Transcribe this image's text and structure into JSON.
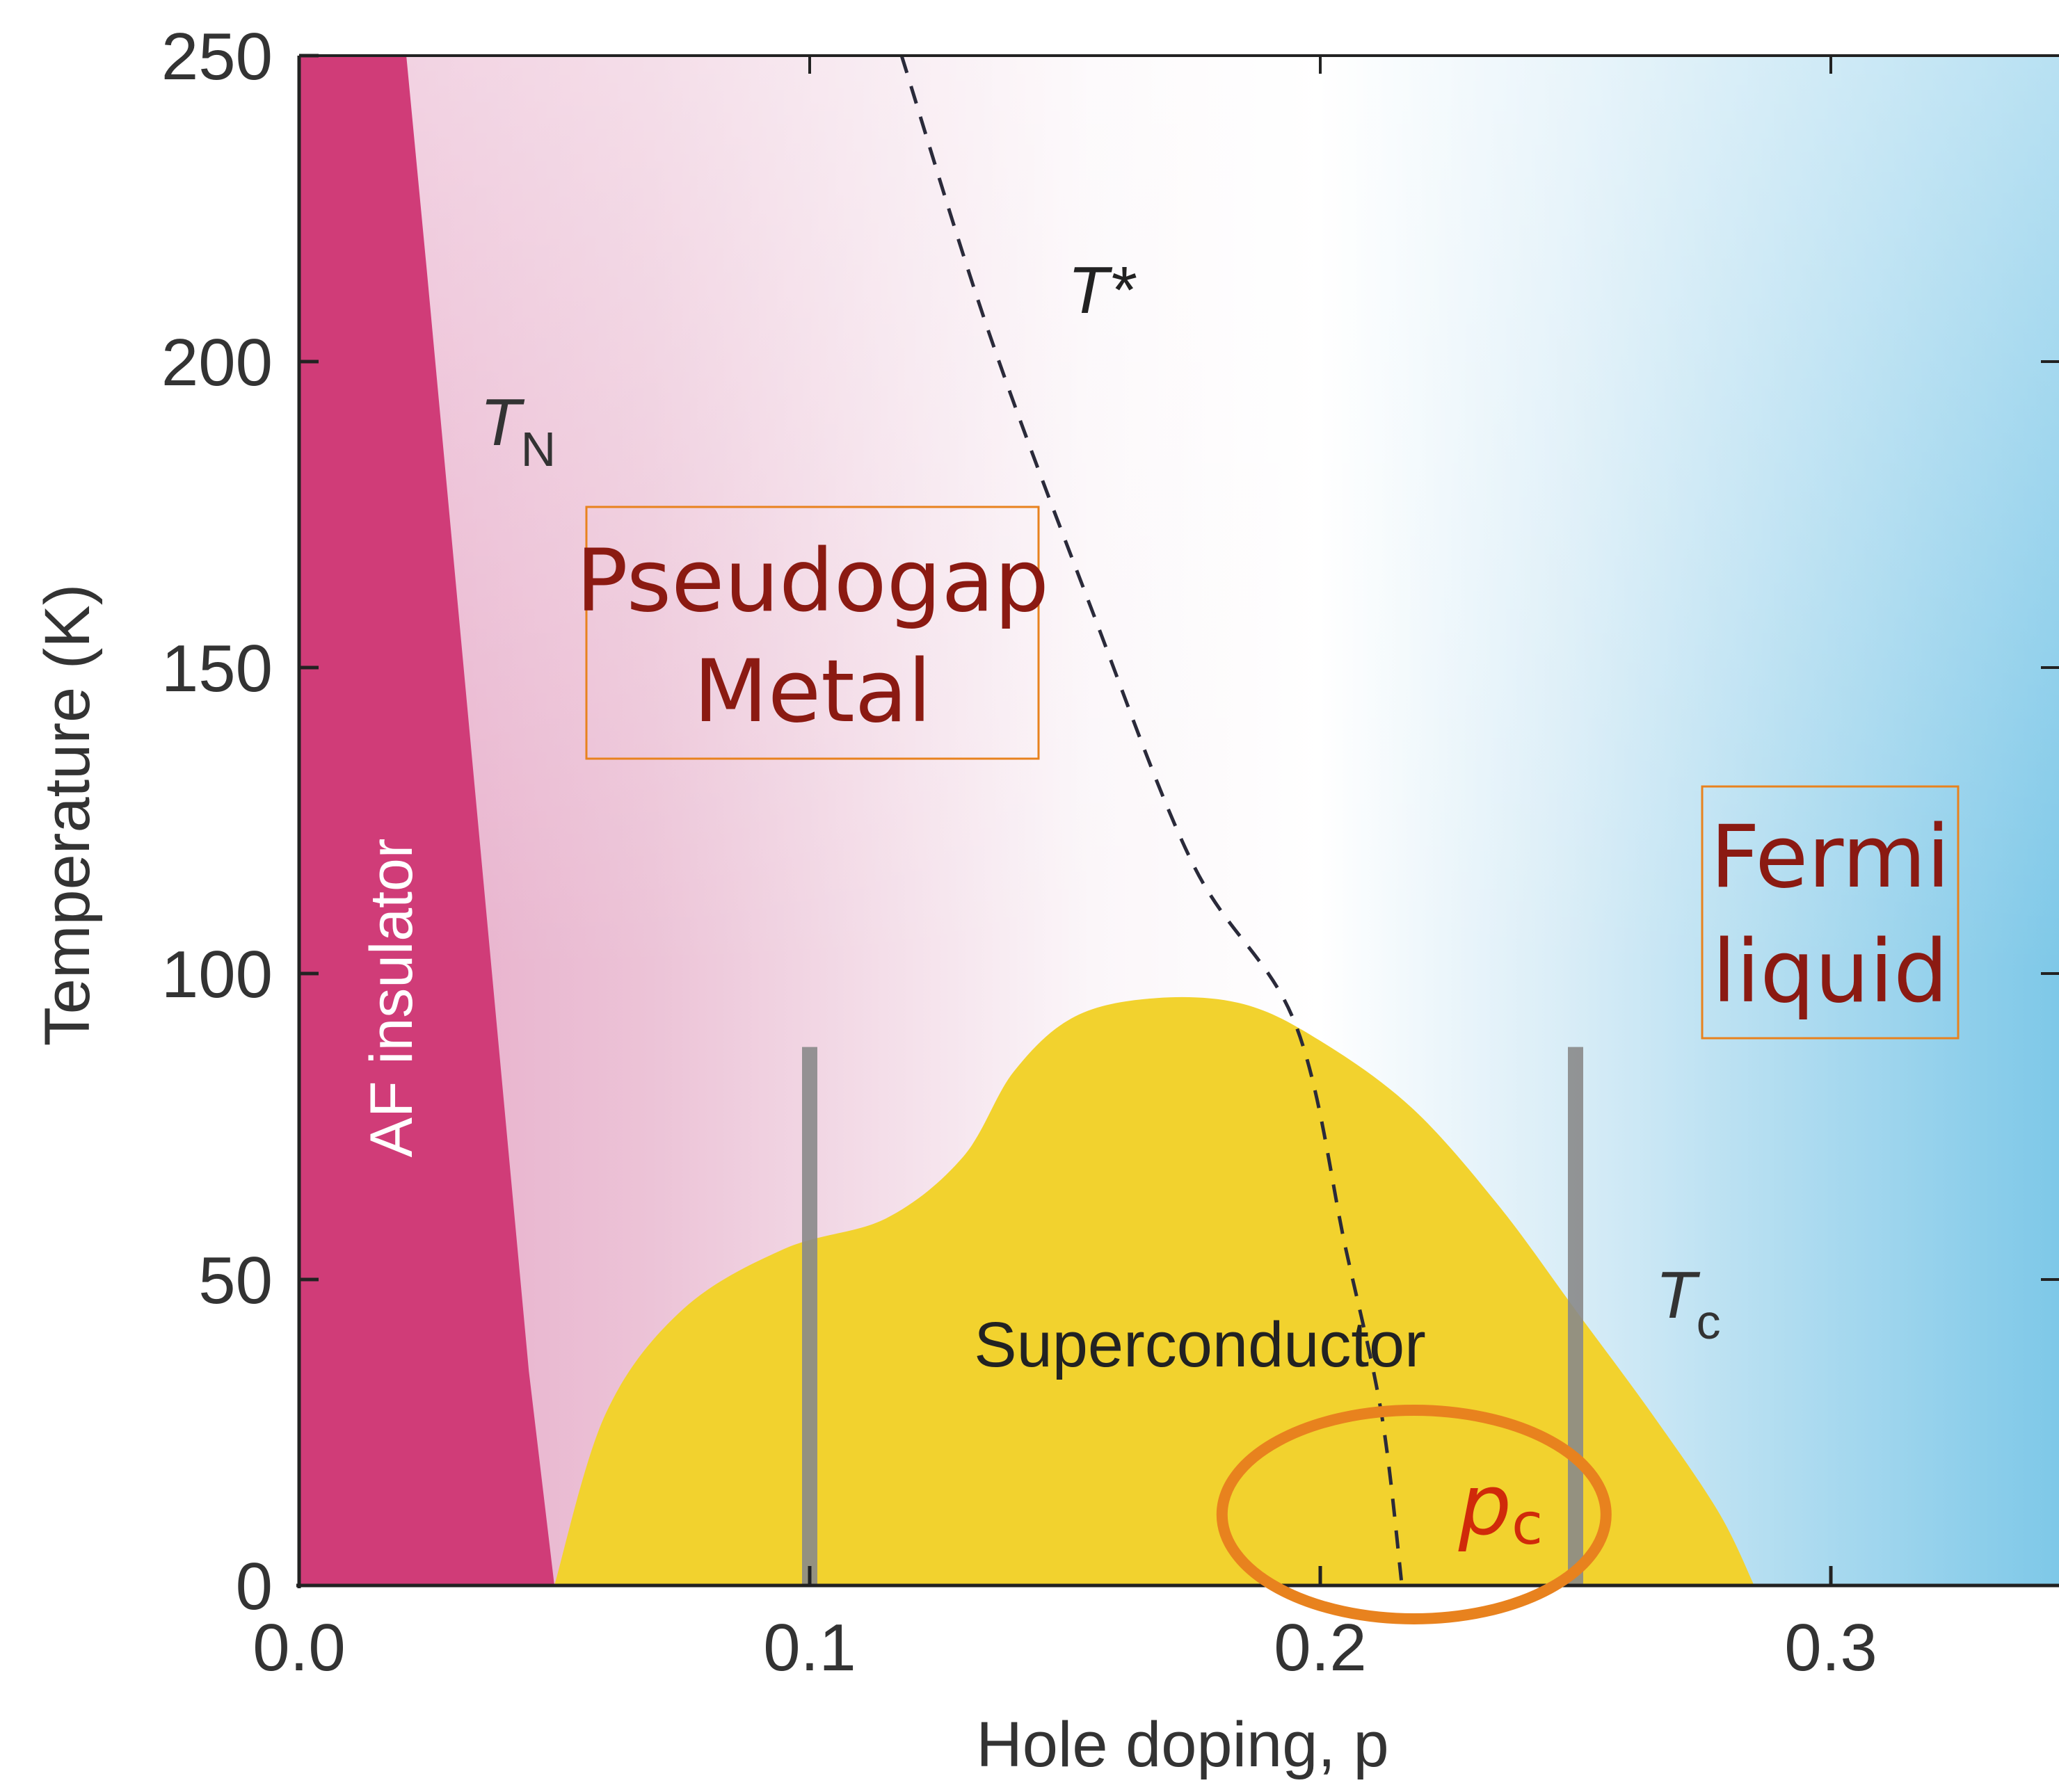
{
  "chart_data": {
    "type": "area",
    "xlabel": "Hole doping, p",
    "ylabel": "Temperature (K)",
    "xlim": [
      0.0,
      0.346
    ],
    "ylim": [
      0,
      250
    ],
    "x_ticks": [
      "0.0",
      "0.1",
      "0.2",
      "0.3"
    ],
    "y_ticks": [
      "0",
      "50",
      "100",
      "150",
      "200",
      "250"
    ],
    "series": [
      {
        "name": "T_N",
        "x": [
          0.021,
          0.025,
          0.03,
          0.035,
          0.04,
          0.045,
          0.05
        ],
        "y": [
          250,
          215,
          170,
          125,
          80,
          35,
          0
        ]
      },
      {
        "name": "T*",
        "x": [
          0.118,
          0.135,
          0.155,
          0.175,
          0.195,
          0.205,
          0.212,
          0.216
        ],
        "y": [
          250,
          205,
          160,
          118,
          92,
          55,
          28,
          0
        ]
      },
      {
        "name": "T_c",
        "x": [
          0.05,
          0.06,
          0.075,
          0.095,
          0.115,
          0.13,
          0.14,
          0.152,
          0.168,
          0.185,
          0.2,
          0.218,
          0.235,
          0.25,
          0.265,
          0.278,
          0.285
        ],
        "y": [
          0,
          28,
          45,
          55,
          60,
          70,
          84,
          93,
          96,
          95,
          89,
          78,
          62,
          45,
          28,
          12,
          0
        ]
      }
    ],
    "vertical_markers": [
      0.1,
      0.25
    ],
    "region_labels": {
      "af": "AF insulator",
      "sc": "Superconductor",
      "pg_line1": "Pseudogap",
      "pg_line2": "Metal",
      "fl_line1": "Fermi",
      "fl_line2": "liquid"
    },
    "curve_labels": {
      "tn_main": "T",
      "tn_sub": "N",
      "tstar": "T*",
      "tc_main": "T",
      "tc_sub": "c"
    },
    "annotation": {
      "main": "p",
      "sub": "c",
      "x": 0.22,
      "y": 10
    },
    "colors": {
      "af": "#d03c78",
      "pseudogap": "#e8b6cf",
      "fermi_liquid": "#7ec8e8",
      "superconductor": "#f2d22e",
      "label_red": "#8b1a12",
      "box_orange": "#e8821e",
      "pc_red": "#d02a0a",
      "marker_gray": "#8a8a8a"
    }
  }
}
